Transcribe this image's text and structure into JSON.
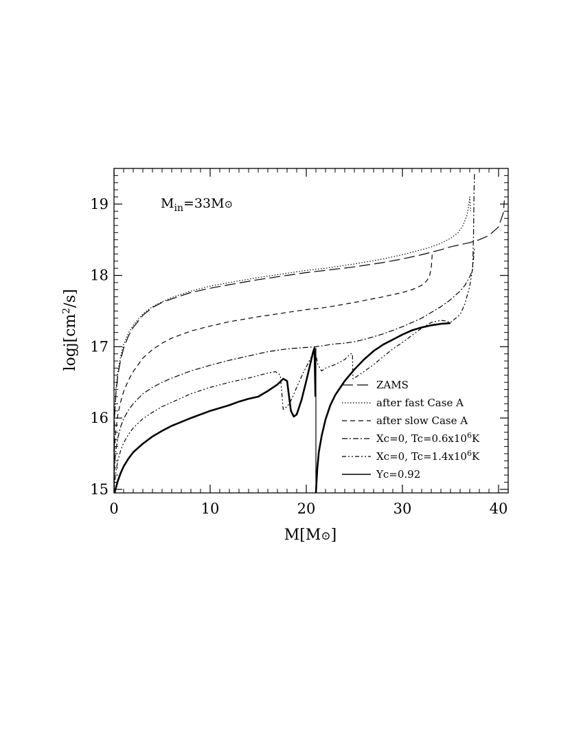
{
  "chart_data": {
    "type": "line",
    "annotation": {
      "text": "M",
      "sub": "in",
      "rest": "=33M",
      "sun": "⊙"
    },
    "xlabel": {
      "text": "M[M",
      "sun": "⊙",
      "close": "]"
    },
    "ylabel": {
      "text": "logj[cm",
      "sup": "2",
      "rest": "/s]"
    },
    "xlim": [
      0,
      41
    ],
    "ylim": [
      14.95,
      19.5
    ],
    "xticks": [
      0,
      10,
      20,
      30,
      40
    ],
    "xtick_labels": [
      "0",
      "10",
      "20",
      "30",
      "40"
    ],
    "yticks": [
      15,
      16,
      17,
      18,
      19
    ],
    "ytick_labels": [
      "15",
      "16",
      "17",
      "18",
      "19"
    ],
    "legend_position": "lower-right",
    "series": [
      {
        "name": "ZAMS",
        "legend": {
          "text": "ZAMS"
        },
        "style": "longdash",
        "width": 1.2,
        "x": [
          0,
          0.05,
          0.2,
          0.4,
          0.7,
          1,
          1.5,
          2,
          3,
          4,
          5,
          6,
          8,
          10,
          12,
          15,
          18,
          20,
          22,
          25,
          28,
          30,
          32,
          34,
          35,
          36,
          37,
          38,
          39,
          40,
          40.5,
          40.6
        ],
        "y": [
          14.95,
          16.0,
          16.35,
          16.6,
          16.82,
          16.98,
          17.15,
          17.27,
          17.44,
          17.55,
          17.62,
          17.67,
          17.76,
          17.82,
          17.87,
          17.94,
          18.0,
          18.04,
          18.07,
          18.12,
          18.18,
          18.23,
          18.29,
          18.36,
          18.4,
          18.43,
          18.46,
          18.5,
          18.56,
          18.68,
          18.88,
          19.05
        ]
      },
      {
        "name": "after fast Case A",
        "legend": {
          "text": "after fast Case A"
        },
        "style": "dotted",
        "width": 1.2,
        "x": [
          0,
          0.05,
          0.2,
          0.4,
          0.7,
          1,
          1.5,
          2,
          3,
          4,
          5,
          6,
          8,
          10,
          12,
          15,
          18,
          20,
          22,
          25,
          28,
          30,
          32,
          33,
          34,
          35,
          35.8,
          36.3,
          36.7,
          36.9,
          37.0,
          37.05,
          37.1
        ],
        "y": [
          14.95,
          16.05,
          16.4,
          16.65,
          16.87,
          17.03,
          17.19,
          17.3,
          17.46,
          17.56,
          17.63,
          17.69,
          17.78,
          17.85,
          17.9,
          17.97,
          18.03,
          18.07,
          18.1,
          18.16,
          18.23,
          18.29,
          18.36,
          18.4,
          18.45,
          18.52,
          18.6,
          18.7,
          18.84,
          18.98,
          19.1,
          19.0,
          18.9
        ]
      },
      {
        "name": "after slow Case A",
        "legend": {
          "text": "after slow Case A"
        },
        "style": "dashed",
        "width": 1.2,
        "x": [
          0,
          0.05,
          0.2,
          0.4,
          0.7,
          1,
          1.5,
          2,
          3,
          4,
          5,
          6,
          8,
          10,
          12,
          15,
          18,
          20,
          22,
          25,
          28,
          30,
          31,
          32,
          32.5,
          32.8,
          33.0,
          33.05,
          33.1
        ],
        "y": [
          14.95,
          15.55,
          15.85,
          16.05,
          16.23,
          16.37,
          16.53,
          16.65,
          16.84,
          16.96,
          17.05,
          17.12,
          17.22,
          17.29,
          17.35,
          17.42,
          17.48,
          17.52,
          17.55,
          17.62,
          17.7,
          17.76,
          17.8,
          17.86,
          17.92,
          17.98,
          18.1,
          18.2,
          18.3
        ]
      },
      {
        "name": "Xc=0, Tc=0.6x10^6K",
        "legend": {
          "pre": "Xc=0, Tc=0.6x10",
          "sup": "6",
          "post": "K"
        },
        "style": "dashdot",
        "width": 1.2,
        "x": [
          0,
          0.05,
          0.2,
          0.4,
          0.7,
          1,
          1.5,
          2,
          3,
          4,
          5,
          6,
          8,
          10,
          12,
          14,
          16,
          18,
          19,
          20,
          21,
          22,
          23,
          24,
          25,
          26,
          28,
          30,
          32,
          34,
          35,
          36,
          36.5,
          37.0,
          37.3,
          37.4,
          37.45,
          37.5
        ],
        "y": [
          14.95,
          15.3,
          15.55,
          15.72,
          15.88,
          15.99,
          16.11,
          16.2,
          16.34,
          16.43,
          16.5,
          16.56,
          16.66,
          16.74,
          16.81,
          16.87,
          16.93,
          16.97,
          16.98,
          16.99,
          17.0,
          17.02,
          17.04,
          17.05,
          17.07,
          17.1,
          17.18,
          17.28,
          17.4,
          17.56,
          17.66,
          17.78,
          17.86,
          17.98,
          18.08,
          18.6,
          19.2,
          19.45
        ]
      },
      {
        "name": "Xc=0, Tc=1.4x10^6K",
        "legend": {
          "pre": "Xc=0, Tc=1.4x10",
          "sup": "6",
          "post": "K"
        },
        "style": "dashdotdot",
        "width": 1.2,
        "x": [
          0,
          0.05,
          0.2,
          0.4,
          0.7,
          1,
          1.5,
          2,
          3,
          4,
          5,
          6,
          8,
          10,
          12,
          14,
          16,
          16.8,
          17.3,
          17.6,
          18.0,
          18.3,
          18.6,
          18.9,
          19.3,
          19.7,
          20.2,
          20.6,
          20.9,
          21.2,
          21.6,
          22,
          23,
          24,
          24.6,
          24.8,
          24.85,
          25,
          26,
          27,
          28,
          29,
          30,
          31,
          32,
          33,
          34,
          34.5,
          35,
          36,
          36.5,
          37,
          37.3,
          37.5
        ],
        "y": [
          14.95,
          15.05,
          15.25,
          15.4,
          15.55,
          15.65,
          15.77,
          15.86,
          15.99,
          16.08,
          16.16,
          16.22,
          16.34,
          16.43,
          16.5,
          16.56,
          16.63,
          16.65,
          16.6,
          16.12,
          16.16,
          16.22,
          16.3,
          16.4,
          16.52,
          16.64,
          16.77,
          16.88,
          16.95,
          16.75,
          16.66,
          16.7,
          16.75,
          16.82,
          16.9,
          16.9,
          16.55,
          16.56,
          16.65,
          16.75,
          16.86,
          16.97,
          17.06,
          17.16,
          17.26,
          17.34,
          17.37,
          17.36,
          17.34,
          17.45,
          17.6,
          17.85,
          18.1,
          18.4
        ]
      },
      {
        "name": "Yc=0.92",
        "legend": {
          "text": "Yc=0.92"
        },
        "style": "solid",
        "width": 2.6,
        "x": [
          0.05,
          0.2,
          0.4,
          0.7,
          1,
          1.5,
          2,
          3,
          4,
          5,
          6,
          8,
          10,
          12,
          13,
          14,
          15,
          16,
          17,
          17.6,
          18.0,
          18.4,
          18.7,
          19.0,
          19.5,
          20.0,
          20.4,
          20.7,
          20.85,
          20.95,
          null,
          21.0,
          21.15,
          21.3,
          21.6,
          22,
          22.5,
          23,
          24,
          25,
          26,
          27,
          28,
          29,
          30,
          31,
          32,
          33,
          34,
          35
        ],
        "y": [
          14.95,
          15.02,
          15.12,
          15.23,
          15.32,
          15.43,
          15.52,
          15.64,
          15.74,
          15.82,
          15.89,
          16.0,
          16.1,
          16.18,
          16.23,
          16.27,
          16.3,
          16.38,
          16.47,
          16.55,
          16.52,
          16.1,
          16.02,
          16.05,
          16.25,
          16.52,
          16.75,
          16.92,
          16.98,
          16.3,
          null,
          14.95,
          15.3,
          15.52,
          15.75,
          15.98,
          16.18,
          16.32,
          16.52,
          16.68,
          16.82,
          16.94,
          17.03,
          17.1,
          17.17,
          17.23,
          17.27,
          17.3,
          17.32,
          17.33
        ]
      }
    ],
    "vertical_marks": [
      {
        "x": 21.0,
        "y_from": 14.95,
        "y_to": 16.98
      }
    ]
  }
}
